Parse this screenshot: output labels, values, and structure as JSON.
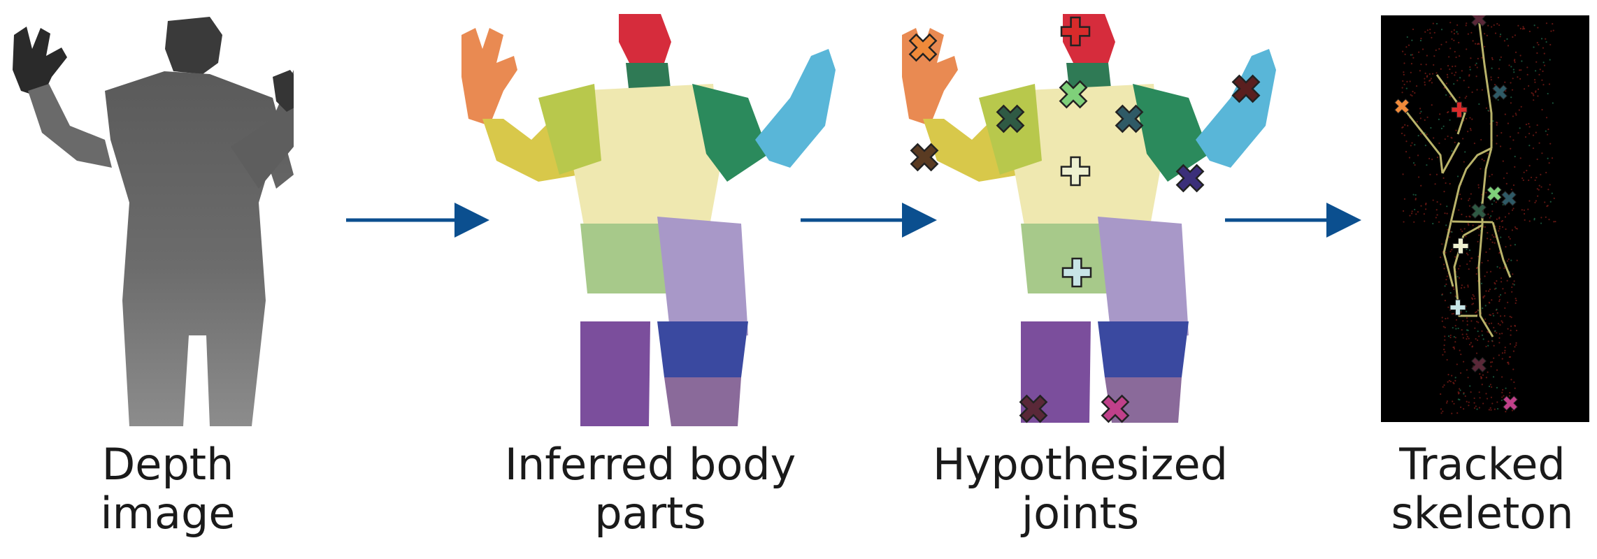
{
  "stages": [
    {
      "caption_lines": [
        "Depth",
        "image"
      ]
    },
    {
      "caption_lines": [
        "Inferred body",
        "parts"
      ]
    },
    {
      "caption_lines": [
        "Hypothesized",
        "joints"
      ]
    },
    {
      "caption_lines": [
        "Tracked",
        "skeleton"
      ]
    }
  ],
  "arrow_color": "#0b4f8f",
  "skeleton_bg": "#000000",
  "bone_color": "#b9b36a",
  "joint_marker_colors": {
    "head": "#d92b2b",
    "neck": "#7fd07a",
    "shoulder_left": "#2f5a44",
    "shoulder_right": "#2f5a66",
    "elbow_left": "#5a3b22",
    "elbow_right": "#3b2f7a",
    "hand_left": "#f08a3a",
    "hand_right": "#5a1f1f",
    "spine": "#eef0d0",
    "hip": "#c7e4e6",
    "foot_left": "#5a2838",
    "foot_right": "#c0408a"
  }
}
